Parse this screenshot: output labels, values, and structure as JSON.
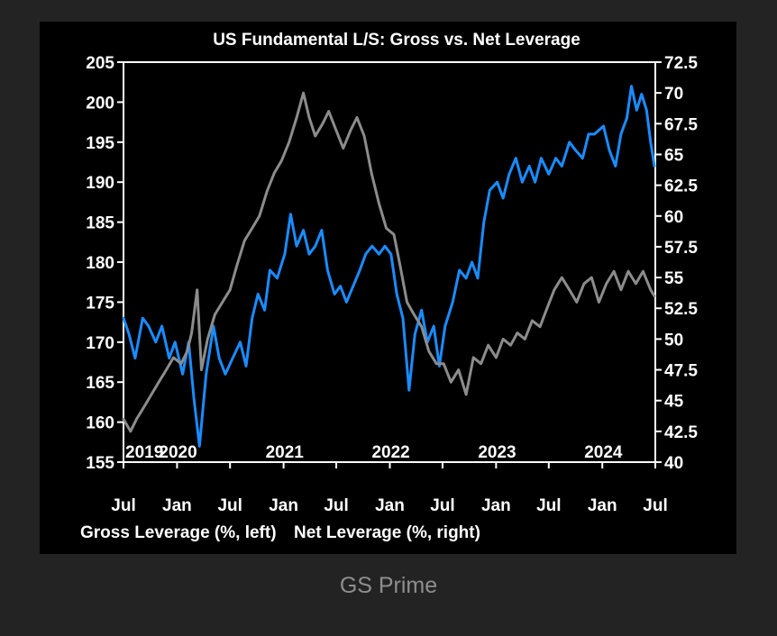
{
  "caption": "GS Prime",
  "chart_data": {
    "type": "line",
    "title": "US Fundamental L/S: Gross vs. Net Leverage",
    "xlabel": "",
    "ylabel_left": "",
    "ylabel_right": "",
    "x_range": [
      "2019-07-01",
      "2024-07-01"
    ],
    "x_month_ticks": [
      "Jul",
      "Jan",
      "Jul",
      "Jan",
      "Jul",
      "Jan",
      "Jul",
      "Jan",
      "Jul",
      "Jan",
      "Jul"
    ],
    "x_year_labels": [
      "2019",
      "2020",
      "2021",
      "2022",
      "2023",
      "2024"
    ],
    "y_left": {
      "min": 155,
      "max": 205,
      "ticks": [
        "155",
        "160",
        "165",
        "170",
        "175",
        "180",
        "185",
        "190",
        "195",
        "200",
        "205"
      ]
    },
    "y_right": {
      "min": 40,
      "max": 72.5,
      "ticks": [
        "40",
        "42.5",
        "45",
        "47.5",
        "50",
        "52.5",
        "55",
        "57.5",
        "60",
        "62.5",
        "65",
        "67.5",
        "70",
        "72.5"
      ]
    },
    "series": [
      {
        "name": "Gross Leverage (%, left)",
        "axis": "left",
        "color": "#1a8cff",
        "points": [
          [
            "2019-07-01",
            173
          ],
          [
            "2019-07-20",
            171
          ],
          [
            "2019-08-10",
            168
          ],
          [
            "2019-09-05",
            173
          ],
          [
            "2019-09-25",
            172
          ],
          [
            "2019-10-20",
            170
          ],
          [
            "2019-11-10",
            172
          ],
          [
            "2019-12-05",
            168
          ],
          [
            "2019-12-25",
            170
          ],
          [
            "2020-01-20",
            166
          ],
          [
            "2020-02-10",
            170
          ],
          [
            "2020-02-28",
            163
          ],
          [
            "2020-03-18",
            157
          ],
          [
            "2020-04-10",
            166
          ],
          [
            "2020-05-05",
            172
          ],
          [
            "2020-05-25",
            168
          ],
          [
            "2020-06-15",
            166
          ],
          [
            "2020-07-10",
            168
          ],
          [
            "2020-08-05",
            170
          ],
          [
            "2020-08-25",
            167
          ],
          [
            "2020-09-15",
            173
          ],
          [
            "2020-10-05",
            176
          ],
          [
            "2020-10-28",
            174
          ],
          [
            "2020-11-15",
            179
          ],
          [
            "2020-12-10",
            178
          ],
          [
            "2021-01-05",
            181
          ],
          [
            "2021-01-25",
            186
          ],
          [
            "2021-02-15",
            182
          ],
          [
            "2021-03-10",
            184
          ],
          [
            "2021-03-30",
            181
          ],
          [
            "2021-04-20",
            182
          ],
          [
            "2021-05-12",
            184
          ],
          [
            "2021-06-01",
            179
          ],
          [
            "2021-06-25",
            176
          ],
          [
            "2021-07-15",
            177
          ],
          [
            "2021-08-05",
            175
          ],
          [
            "2021-08-28",
            177
          ],
          [
            "2021-09-20",
            179
          ],
          [
            "2021-10-10",
            181
          ],
          [
            "2021-11-01",
            182
          ],
          [
            "2021-11-25",
            181
          ],
          [
            "2021-12-15",
            182
          ],
          [
            "2022-01-05",
            181
          ],
          [
            "2022-01-25",
            176
          ],
          [
            "2022-02-15",
            173
          ],
          [
            "2022-03-08",
            164
          ],
          [
            "2022-03-28",
            171
          ],
          [
            "2022-04-20",
            174
          ],
          [
            "2022-05-10",
            170
          ],
          [
            "2022-06-01",
            172
          ],
          [
            "2022-06-20",
            167
          ],
          [
            "2022-07-10",
            172
          ],
          [
            "2022-08-05",
            175
          ],
          [
            "2022-08-28",
            179
          ],
          [
            "2022-09-20",
            178
          ],
          [
            "2022-10-10",
            180
          ],
          [
            "2022-10-30",
            178
          ],
          [
            "2022-11-20",
            185
          ],
          [
            "2022-12-10",
            189
          ],
          [
            "2023-01-05",
            190
          ],
          [
            "2023-01-25",
            188
          ],
          [
            "2023-02-15",
            191
          ],
          [
            "2023-03-10",
            193
          ],
          [
            "2023-04-01",
            190
          ],
          [
            "2023-04-25",
            192
          ],
          [
            "2023-05-15",
            190
          ],
          [
            "2023-06-05",
            193
          ],
          [
            "2023-07-01",
            191
          ],
          [
            "2023-07-25",
            193
          ],
          [
            "2023-08-15",
            192
          ],
          [
            "2023-09-10",
            195
          ],
          [
            "2023-10-01",
            194
          ],
          [
            "2023-10-25",
            193
          ],
          [
            "2023-11-15",
            196
          ],
          [
            "2023-12-05",
            196
          ],
          [
            "2024-01-05",
            197
          ],
          [
            "2024-01-25",
            194
          ],
          [
            "2024-02-15",
            192
          ],
          [
            "2024-03-05",
            196
          ],
          [
            "2024-03-25",
            198
          ],
          [
            "2024-04-10",
            202
          ],
          [
            "2024-04-28",
            199
          ],
          [
            "2024-05-15",
            201
          ],
          [
            "2024-06-01",
            199
          ],
          [
            "2024-06-15",
            195
          ],
          [
            "2024-06-28",
            192
          ]
        ]
      },
      {
        "name": "Net Leverage (%, right)",
        "axis": "right",
        "color": "#8c8c8c",
        "points": [
          [
            "2019-07-01",
            43.5
          ],
          [
            "2019-07-25",
            42.5
          ],
          [
            "2019-08-15",
            43.5
          ],
          [
            "2019-09-10",
            44.5
          ],
          [
            "2019-10-05",
            45.5
          ],
          [
            "2019-10-30",
            46.5
          ],
          [
            "2019-11-25",
            47.5
          ],
          [
            "2019-12-20",
            48.5
          ],
          [
            "2020-01-15",
            48
          ],
          [
            "2020-02-05",
            49
          ],
          [
            "2020-02-20",
            50.5
          ],
          [
            "2020-03-10",
            54
          ],
          [
            "2020-03-25",
            47.5
          ],
          [
            "2020-04-15",
            50
          ],
          [
            "2020-05-10",
            52
          ],
          [
            "2020-06-05",
            53
          ],
          [
            "2020-07-01",
            54
          ],
          [
            "2020-07-25",
            56
          ],
          [
            "2020-08-20",
            58
          ],
          [
            "2020-09-15",
            59
          ],
          [
            "2020-10-10",
            60
          ],
          [
            "2020-11-05",
            62
          ],
          [
            "2020-11-30",
            63.5
          ],
          [
            "2020-12-25",
            64.5
          ],
          [
            "2021-01-20",
            66
          ],
          [
            "2021-02-15",
            68
          ],
          [
            "2021-03-10",
            70
          ],
          [
            "2021-03-30",
            68
          ],
          [
            "2021-04-20",
            66.5
          ],
          [
            "2021-05-15",
            67.5
          ],
          [
            "2021-06-05",
            68.5
          ],
          [
            "2021-06-30",
            67
          ],
          [
            "2021-07-25",
            65.5
          ],
          [
            "2021-08-20",
            67
          ],
          [
            "2021-09-10",
            68
          ],
          [
            "2021-10-05",
            66.5
          ],
          [
            "2021-10-30",
            63.5
          ],
          [
            "2021-11-25",
            61
          ],
          [
            "2021-12-20",
            59
          ],
          [
            "2022-01-15",
            58.5
          ],
          [
            "2022-02-05",
            56
          ],
          [
            "2022-03-01",
            53
          ],
          [
            "2022-03-25",
            52
          ],
          [
            "2022-04-20",
            51
          ],
          [
            "2022-05-15",
            49
          ],
          [
            "2022-06-10",
            48
          ],
          [
            "2022-07-05",
            48
          ],
          [
            "2022-07-30",
            46.5
          ],
          [
            "2022-08-25",
            47.5
          ],
          [
            "2022-09-20",
            45.5
          ],
          [
            "2022-10-15",
            48.5
          ],
          [
            "2022-11-10",
            48
          ],
          [
            "2022-12-05",
            49.5
          ],
          [
            "2023-01-01",
            48.5
          ],
          [
            "2023-01-25",
            50
          ],
          [
            "2023-02-20",
            49.5
          ],
          [
            "2023-03-15",
            50.5
          ],
          [
            "2023-04-10",
            50
          ],
          [
            "2023-05-05",
            51.5
          ],
          [
            "2023-06-01",
            51
          ],
          [
            "2023-06-25",
            52.5
          ],
          [
            "2023-07-20",
            54
          ],
          [
            "2023-08-15",
            55
          ],
          [
            "2023-09-10",
            54
          ],
          [
            "2023-10-05",
            53
          ],
          [
            "2023-10-30",
            54.5
          ],
          [
            "2023-11-25",
            55
          ],
          [
            "2023-12-20",
            53
          ],
          [
            "2024-01-15",
            54.5
          ],
          [
            "2024-02-10",
            55.5
          ],
          [
            "2024-03-05",
            54
          ],
          [
            "2024-03-30",
            55.5
          ],
          [
            "2024-04-25",
            54.5
          ],
          [
            "2024-05-20",
            55.5
          ],
          [
            "2024-06-15",
            54
          ],
          [
            "2024-06-28",
            53.5
          ]
        ]
      }
    ],
    "grid": false,
    "legend_position": "bottom-left"
  }
}
